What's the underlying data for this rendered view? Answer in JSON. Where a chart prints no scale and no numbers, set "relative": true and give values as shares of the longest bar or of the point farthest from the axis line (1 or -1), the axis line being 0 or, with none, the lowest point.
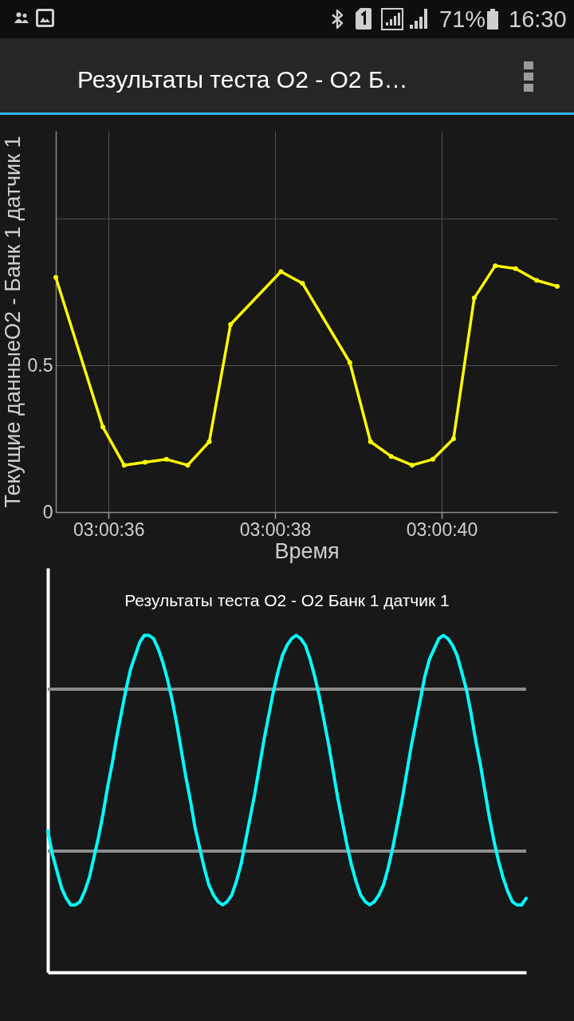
{
  "chart_data": [
    {
      "type": "line",
      "title": "Результаты теста O2 - O2 Б…",
      "xlabel": "Время",
      "ylabel": "Текущие данныеO2 - Банк 1 датчик 1",
      "x": [
        3.009824,
        3.009981,
        3.010052,
        3.010122,
        3.010193,
        3.010264,
        3.010336,
        3.010407,
        3.010575,
        3.010647,
        3.010805,
        3.010874,
        3.010943,
        3.011013,
        3.011082,
        3.011151,
        3.01122,
        3.01129,
        3.011358,
        3.011428,
        3.011497
      ],
      "values": [
        0.8,
        0.29,
        0.16,
        0.17,
        0.18,
        0.16,
        0.24,
        0.64,
        0.82,
        0.78,
        0.51,
        0.24,
        0.19,
        0.16,
        0.18,
        0.25,
        0.73,
        0.84,
        0.83,
        0.79,
        0.77
      ],
      "color": "#ffff00",
      "xlim": [
        3.009824,
        3.011497
      ],
      "ylim": [
        0,
        1.3
      ],
      "xticks": [
        {
          "value": 3.01,
          "label": "03:00:36"
        },
        {
          "value": 3.0105556,
          "label": "03:00:38"
        },
        {
          "value": 3.0111111,
          "label": "03:00:40"
        }
      ],
      "yticks": [
        0,
        0.5,
        {
          "value": 1,
          "label": null
        }
      ],
      "grid": true,
      "marker": "circle",
      "line_style": "solid",
      "annotations": [
        "71%",
        "16:30"
      ]
    },
    {
      "type": "line",
      "title": "Результаты теста O2 - O2 Банк 1 датчик 1",
      "categories": [
        null,
        null,
        null,
        null,
        null,
        null,
        null,
        null,
        null,
        null,
        null,
        null,
        null,
        null,
        null,
        null,
        null,
        null,
        null,
        null,
        null,
        null,
        null,
        null,
        null,
        null,
        null,
        null,
        null,
        null,
        null,
        null,
        null,
        null,
        null,
        null,
        null,
        null,
        null,
        null,
        null,
        null,
        null,
        null,
        null,
        null,
        null,
        null,
        null,
        null,
        null,
        null,
        null,
        null,
        null,
        null,
        null,
        null,
        null,
        null,
        null,
        null,
        null,
        null,
        null,
        null,
        null,
        null,
        null,
        null,
        null,
        null,
        null,
        null,
        null,
        null,
        null,
        null,
        null,
        null,
        null,
        null,
        null,
        null,
        null,
        null,
        null,
        null,
        null,
        null,
        null,
        null,
        null,
        null,
        null,
        null,
        null,
        null,
        null,
        null,
        null,
        null,
        null,
        null,
        null
      ],
      "values": [
        0.42,
        0.35,
        0.3,
        0.25,
        0.22,
        0.2,
        0.2,
        0.21,
        0.24,
        0.28,
        0.34,
        0.4,
        0.47,
        0.55,
        0.62,
        0.7,
        0.77,
        0.84,
        0.9,
        0.94,
        0.98,
        1,
        1,
        0.99,
        0.96,
        0.92,
        0.87,
        0.81,
        0.74,
        0.66,
        0.58,
        0.51,
        0.43,
        0.37,
        0.31,
        0.26,
        0.23,
        0.21,
        0.2,
        0.21,
        0.23,
        0.27,
        0.32,
        0.39,
        0.46,
        0.53,
        0.61,
        0.69,
        0.76,
        0.83,
        0.89,
        0.94,
        0.97,
        0.99,
        1,
        0.99,
        0.97,
        0.93,
        0.88,
        0.82,
        0.75,
        0.68,
        0.6,
        0.52,
        0.45,
        0.38,
        0.32,
        0.27,
        0.23,
        0.21,
        0.2,
        0.21,
        0.23,
        0.26,
        0.31,
        0.37,
        0.44,
        0.51,
        0.59,
        0.67,
        0.74,
        0.81,
        0.88,
        0.93,
        0.96,
        0.99,
        1,
        0.99,
        0.97,
        0.94,
        0.89,
        0.84,
        0.77,
        0.69,
        0.62,
        0.54,
        0.46,
        0.39,
        0.33,
        0.28,
        0.24,
        0.21,
        0.2,
        0.2,
        0.22
      ],
      "color": "#00ffff",
      "relative": true,
      "line_style": "solid",
      "ref_lines": [
        {
          "axis": "y",
          "value": 0.84,
          "color": "#8c8c8c"
        },
        {
          "axis": "y",
          "value": 0.36,
          "color": "#8c8c8c"
        }
      ]
    }
  ]
}
